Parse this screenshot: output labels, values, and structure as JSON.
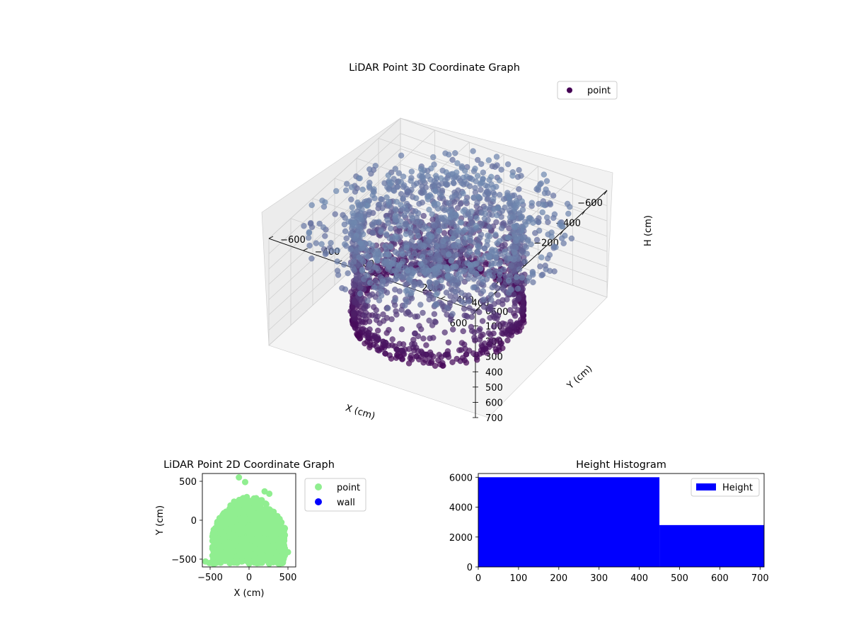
{
  "chart_data": [
    {
      "type": "scatter3d",
      "title": "LiDAR Point 3D Coordinate Graph",
      "xlabel": "X (cm)",
      "ylabel": "Y (cm)",
      "zlabel": "H (cm)",
      "xlim": [
        -600,
        600
      ],
      "ylim": [
        -600,
        600
      ],
      "zlim": [
        0,
        700
      ],
      "z_inverted": true,
      "x_ticks": [
        "−600",
        "−400",
        "−200",
        "0",
        "200",
        "400",
        "600"
      ],
      "y_ticks": [
        "−600",
        "−400",
        "−200",
        "0",
        "200",
        "400",
        "600"
      ],
      "z_ticks": [
        "0",
        "100",
        "200",
        "300",
        "400",
        "500",
        "600",
        "700"
      ],
      "grid": true,
      "legend": {
        "placement": "top-right",
        "entries": [
          {
            "label": "point",
            "color": "#440154"
          }
        ]
      },
      "colormap": "viridis",
      "cylinder_radius": 420,
      "cylinder_height": 700,
      "floor_radius": 600,
      "series": [
        {
          "name": "point"
        }
      ]
    },
    {
      "type": "scatter",
      "title": "LiDAR Point 2D Coordinate Graph",
      "xlabel": "X (cm)",
      "ylabel": "Y (cm)",
      "xlim": [
        -600,
        600
      ],
      "ylim": [
        -600,
        600
      ],
      "x_ticks": [
        -500,
        0,
        500
      ],
      "y_ticks": [
        -500,
        0,
        500
      ],
      "legend": {
        "placement": "outside-right",
        "entries": [
          {
            "label": "point",
            "color": "#90ee90"
          },
          {
            "label": "wall",
            "color": "#0000ff"
          }
        ]
      },
      "series": [
        {
          "name": "point",
          "color": "#90ee90"
        },
        {
          "name": "wall",
          "color": "#0000ff"
        }
      ],
      "outliers": [
        {
          "x": -130,
          "y": 550
        },
        {
          "x": -50,
          "y": 490
        },
        {
          "x": 200,
          "y": 370
        },
        {
          "x": 260,
          "y": 340
        },
        {
          "x": 500,
          "y": -410
        },
        {
          "x": -560,
          "y": -530
        },
        {
          "x": -510,
          "y": -550
        }
      ]
    },
    {
      "type": "histogram",
      "title": "Height Histogram",
      "xlim": [
        0,
        710
      ],
      "ylim": [
        0,
        6250
      ],
      "x_ticks": [
        0,
        100,
        200,
        300,
        400,
        500,
        600,
        700
      ],
      "y_ticks": [
        0,
        2000,
        4000,
        6000
      ],
      "legend": {
        "placement": "top-right",
        "entries": [
          {
            "label": "Height",
            "color": "#0000ff"
          }
        ]
      },
      "bins": [
        {
          "start": 0,
          "end": 450,
          "count": 6000
        },
        {
          "start": 450,
          "end": 710,
          "count": 2800
        }
      ],
      "color": "#0000ff"
    }
  ]
}
